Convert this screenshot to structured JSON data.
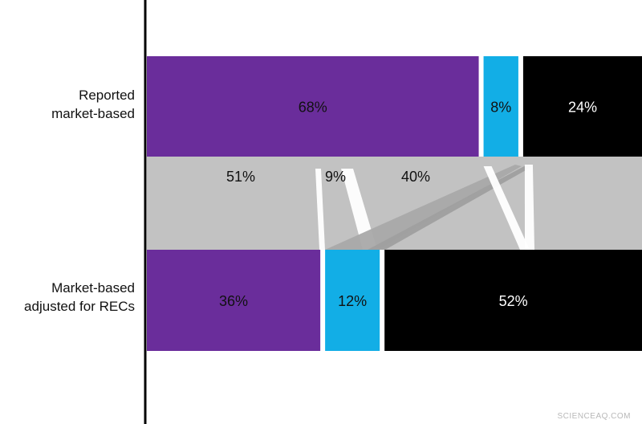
{
  "chart_data": {
    "type": "bar",
    "orientation": "horizontal-stacked",
    "categories": [
      "Reported\nmarket-based",
      "Market-based\nadjusted for RECs"
    ],
    "series": [
      {
        "values": [
          68,
          36
        ],
        "color": "#6a2d9b"
      },
      {
        "values": [
          8,
          12
        ],
        "color": "#12aee6"
      },
      {
        "values": [
          24,
          52
        ],
        "color": "#000000"
      }
    ],
    "value_labels": [
      [
        "68%",
        "8%",
        "24%"
      ],
      [
        "36%",
        "12%",
        "52%"
      ]
    ],
    "flow": {
      "labels": [
        "51%",
        "9%",
        "40%"
      ],
      "band_color": "#c2c2c2"
    }
  },
  "watermark": "SCIENCEAQ.COM"
}
